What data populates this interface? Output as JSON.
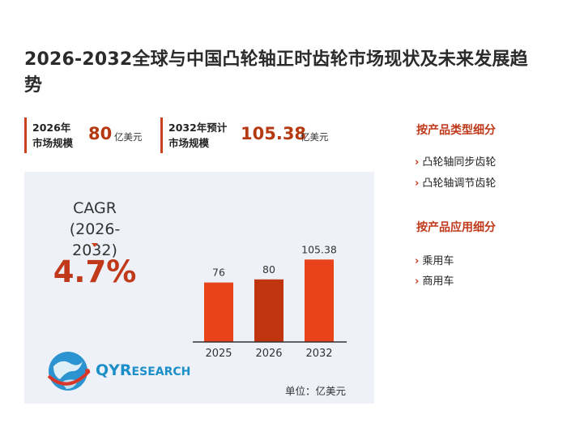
{
  "title": "2026-2032全球与中国凸轮轴正时齿轮市场现状及未来发展趋势",
  "stats": [
    {
      "label_line1": "2026年",
      "label_line2": "市场规模",
      "value": "80",
      "unit": "亿美元"
    },
    {
      "label_line1": "2032年预计",
      "label_line2": "市场规模",
      "value": "105.38",
      "unit": "亿美元"
    }
  ],
  "cagr": {
    "label_line1": "CAGR",
    "label_line2": "(2026-2032)",
    "value": "4.7%"
  },
  "logo": {
    "brand_initial": "QYR",
    "brand_rest": "ESEARCH"
  },
  "unit_note": "单位：亿美元",
  "sidebar": {
    "sections": [
      {
        "heading": "按产品类型细分",
        "items": [
          "凸轮轴同步齿轮",
          "凸轮轴调节齿轮"
        ]
      },
      {
        "heading": "按产品应用细分",
        "items": [
          "乘用车",
          "商用车"
        ]
      }
    ]
  },
  "colors": {
    "accent": "#c8431c",
    "bar_light": "#e8431a",
    "bar_dark": "#c0340f",
    "panel": "#eef2f8"
  },
  "chart_data": {
    "type": "bar",
    "categories": [
      "2025",
      "2026",
      "2032"
    ],
    "values": [
      76,
      80,
      105.38
    ],
    "data_labels": [
      "76",
      "80",
      "105.38"
    ],
    "title": "",
    "xlabel": "",
    "ylabel": "",
    "ylim": [
      0,
      115
    ],
    "grid": false
  }
}
